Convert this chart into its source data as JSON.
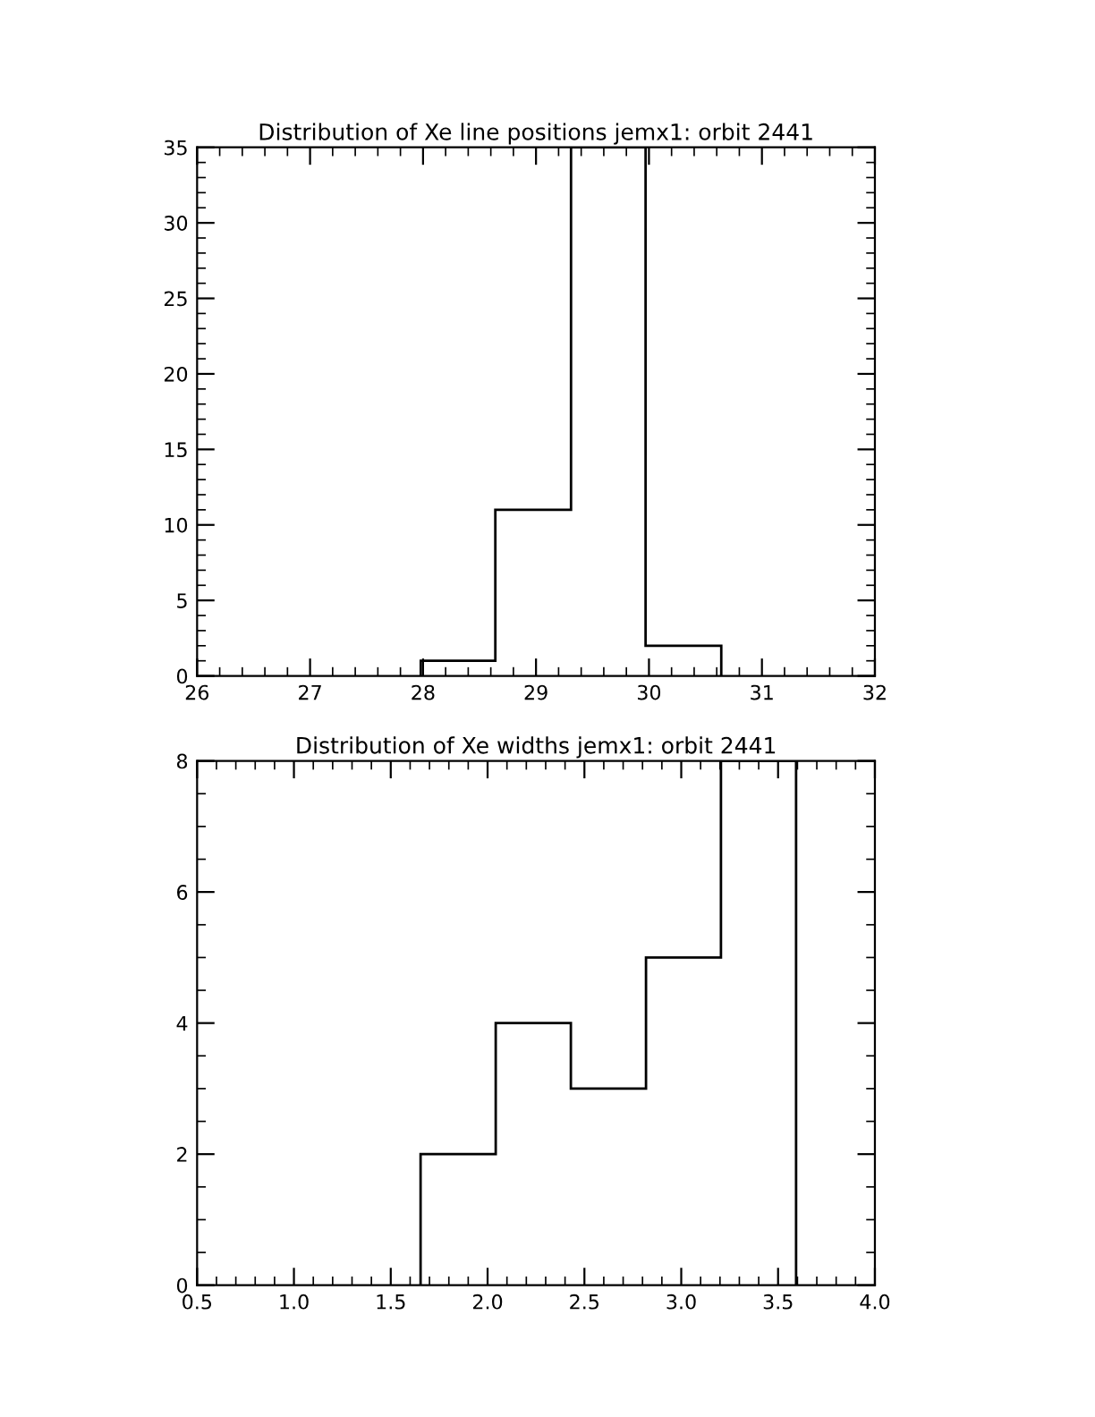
{
  "chart_data": [
    {
      "type": "histogram",
      "title": "Distribution of Xe line positions jemx1: orbit 2441",
      "bins": [
        27.98,
        28.64,
        29.31,
        29.97,
        30.64
      ],
      "values": [
        1,
        11,
        35,
        2
      ],
      "color": "#000000",
      "xlim": [
        26,
        32
      ],
      "xticks": [
        26,
        27,
        28,
        29,
        30,
        31,
        32
      ],
      "ylim": [
        0,
        35
      ],
      "yticks": [
        0,
        5,
        10,
        15,
        20,
        25,
        30,
        35
      ],
      "grid": false,
      "legend": false
    },
    {
      "type": "histogram",
      "title": "Distribution of Xe widths jemx1: orbit 2441",
      "bins": [
        1.654,
        2.042,
        2.43,
        2.818,
        3.205,
        3.593
      ],
      "values": [
        2,
        4,
        3,
        5,
        8
      ],
      "color": "#000000",
      "xlim": [
        0.5,
        4.0
      ],
      "xticks": [
        {
          "value": 0.5,
          "label": "0.5"
        },
        {
          "value": 1.0,
          "label": "1.0"
        },
        {
          "value": 1.5,
          "label": "1.5"
        },
        {
          "value": 2.0,
          "label": "2.0"
        },
        {
          "value": 2.5,
          "label": "2.5"
        },
        {
          "value": 3.0,
          "label": "3.0"
        },
        {
          "value": 3.5,
          "label": "3.5"
        },
        {
          "value": 4.0,
          "label": "4.0"
        }
      ],
      "ylim": [
        0,
        8
      ],
      "yticks": [
        0,
        2,
        4,
        6,
        8
      ],
      "grid": false,
      "legend": false
    }
  ]
}
